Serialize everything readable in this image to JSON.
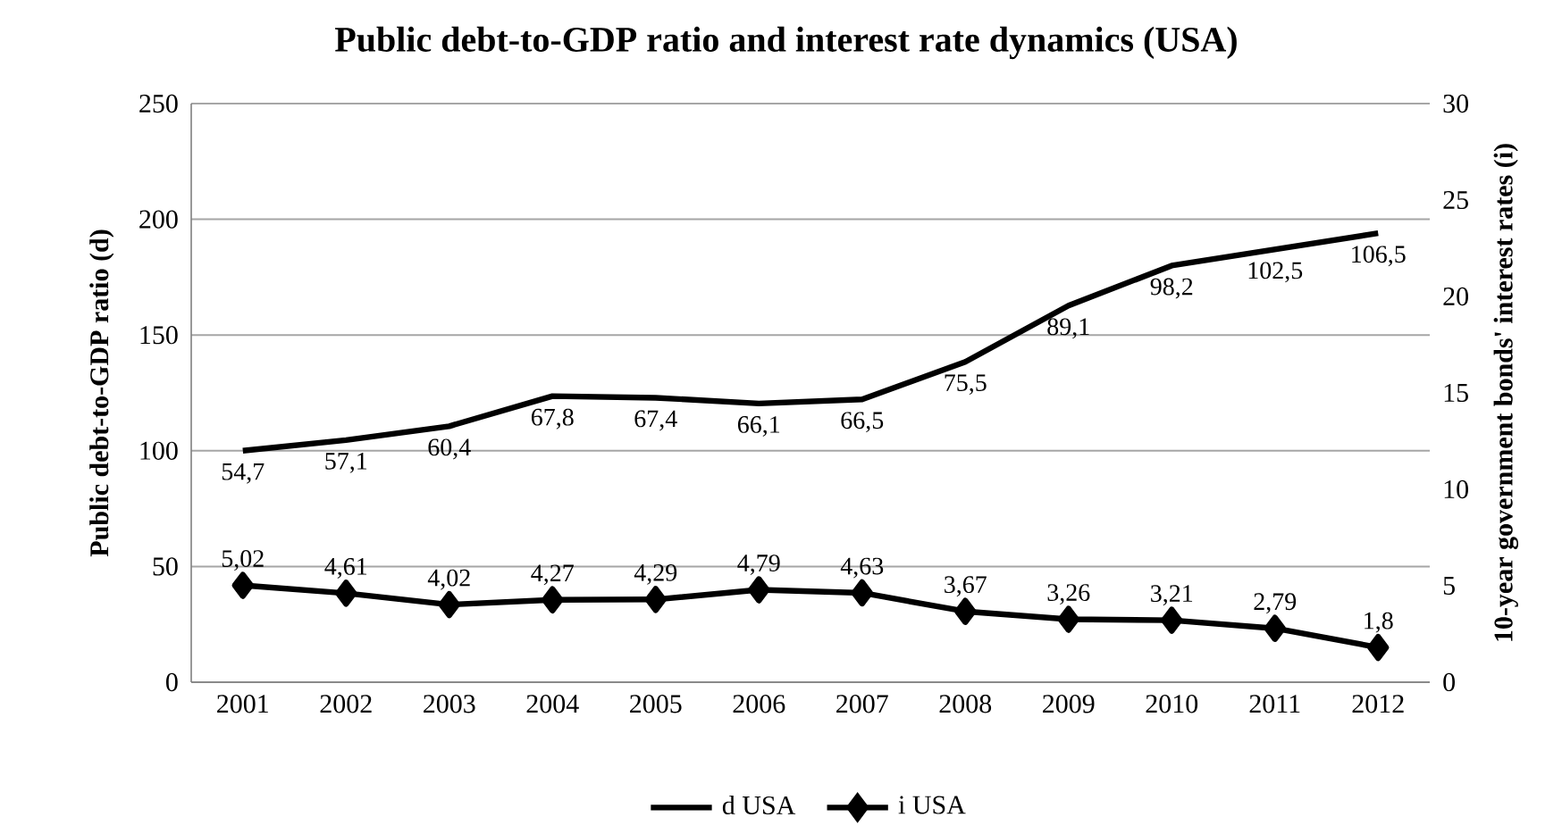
{
  "chart_data": {
    "type": "line",
    "title": "Public debt-to-GDP ratio and interest rate dynamics (USA)",
    "ylabel": "Public debt-to-GDP ratio (d)",
    "y2label": "10-year government bonds' interest rates (i)",
    "categories": [
      "2001",
      "2002",
      "2003",
      "2004",
      "2005",
      "2006",
      "2007",
      "2008",
      "2009",
      "2010",
      "2011",
      "2012"
    ],
    "ylim": [
      0,
      250
    ],
    "yticks": [
      0,
      50,
      100,
      150,
      200,
      250
    ],
    "y2lim": [
      0,
      30
    ],
    "y2ticks": [
      0,
      5,
      10,
      15,
      20,
      25,
      30
    ],
    "grid": "y",
    "legend": "bottom",
    "annotations": [
      {
        "text": "54,7",
        "x": "2001",
        "y": 100
      },
      {
        "text": "57,1",
        "x": "2002",
        "y": 104.6
      },
      {
        "text": "60,4",
        "x": "2003",
        "y": 110.6
      },
      {
        "text": "67,8",
        "x": "2004",
        "y": 123.6
      },
      {
        "text": "67,4",
        "x": "2005",
        "y": 122.9
      },
      {
        "text": "66,1",
        "x": "2006",
        "y": 120.4
      },
      {
        "text": "66,5",
        "x": "2007",
        "y": 122.2
      },
      {
        "text": "75,5",
        "x": "2008",
        "y": 138.4
      },
      {
        "text": "89,1",
        "x": "2009",
        "y": 162.7
      },
      {
        "text": "98,2",
        "x": "2010",
        "y": 180.0
      },
      {
        "text": "102,5",
        "x": "2011",
        "y": 187.0
      },
      {
        "text": "106,5",
        "x": "2012",
        "y": 194.0
      }
    ],
    "series": [
      {
        "name": "d USA",
        "color": "#000000",
        "marker": "none",
        "values": [
          100,
          104.6,
          110.6,
          123.6,
          122.9,
          120.4,
          122.2,
          138.4,
          162.7,
          180.0,
          187.0,
          194.0
        ]
      },
      {
        "name": "i USA",
        "color": "#000000",
        "marker": "diamond",
        "axis": "y2",
        "values": [
          5.02,
          4.61,
          4.02,
          4.27,
          4.29,
          4.79,
          4.63,
          3.67,
          3.26,
          3.21,
          2.79,
          1.8
        ],
        "value_labels": [
          "5,02",
          "4,61",
          "4,02",
          "4,27",
          "4,29",
          "4,79",
          "4,63",
          "3,67",
          "3,26",
          "3,21",
          "2,79",
          "1,8"
        ]
      }
    ]
  }
}
